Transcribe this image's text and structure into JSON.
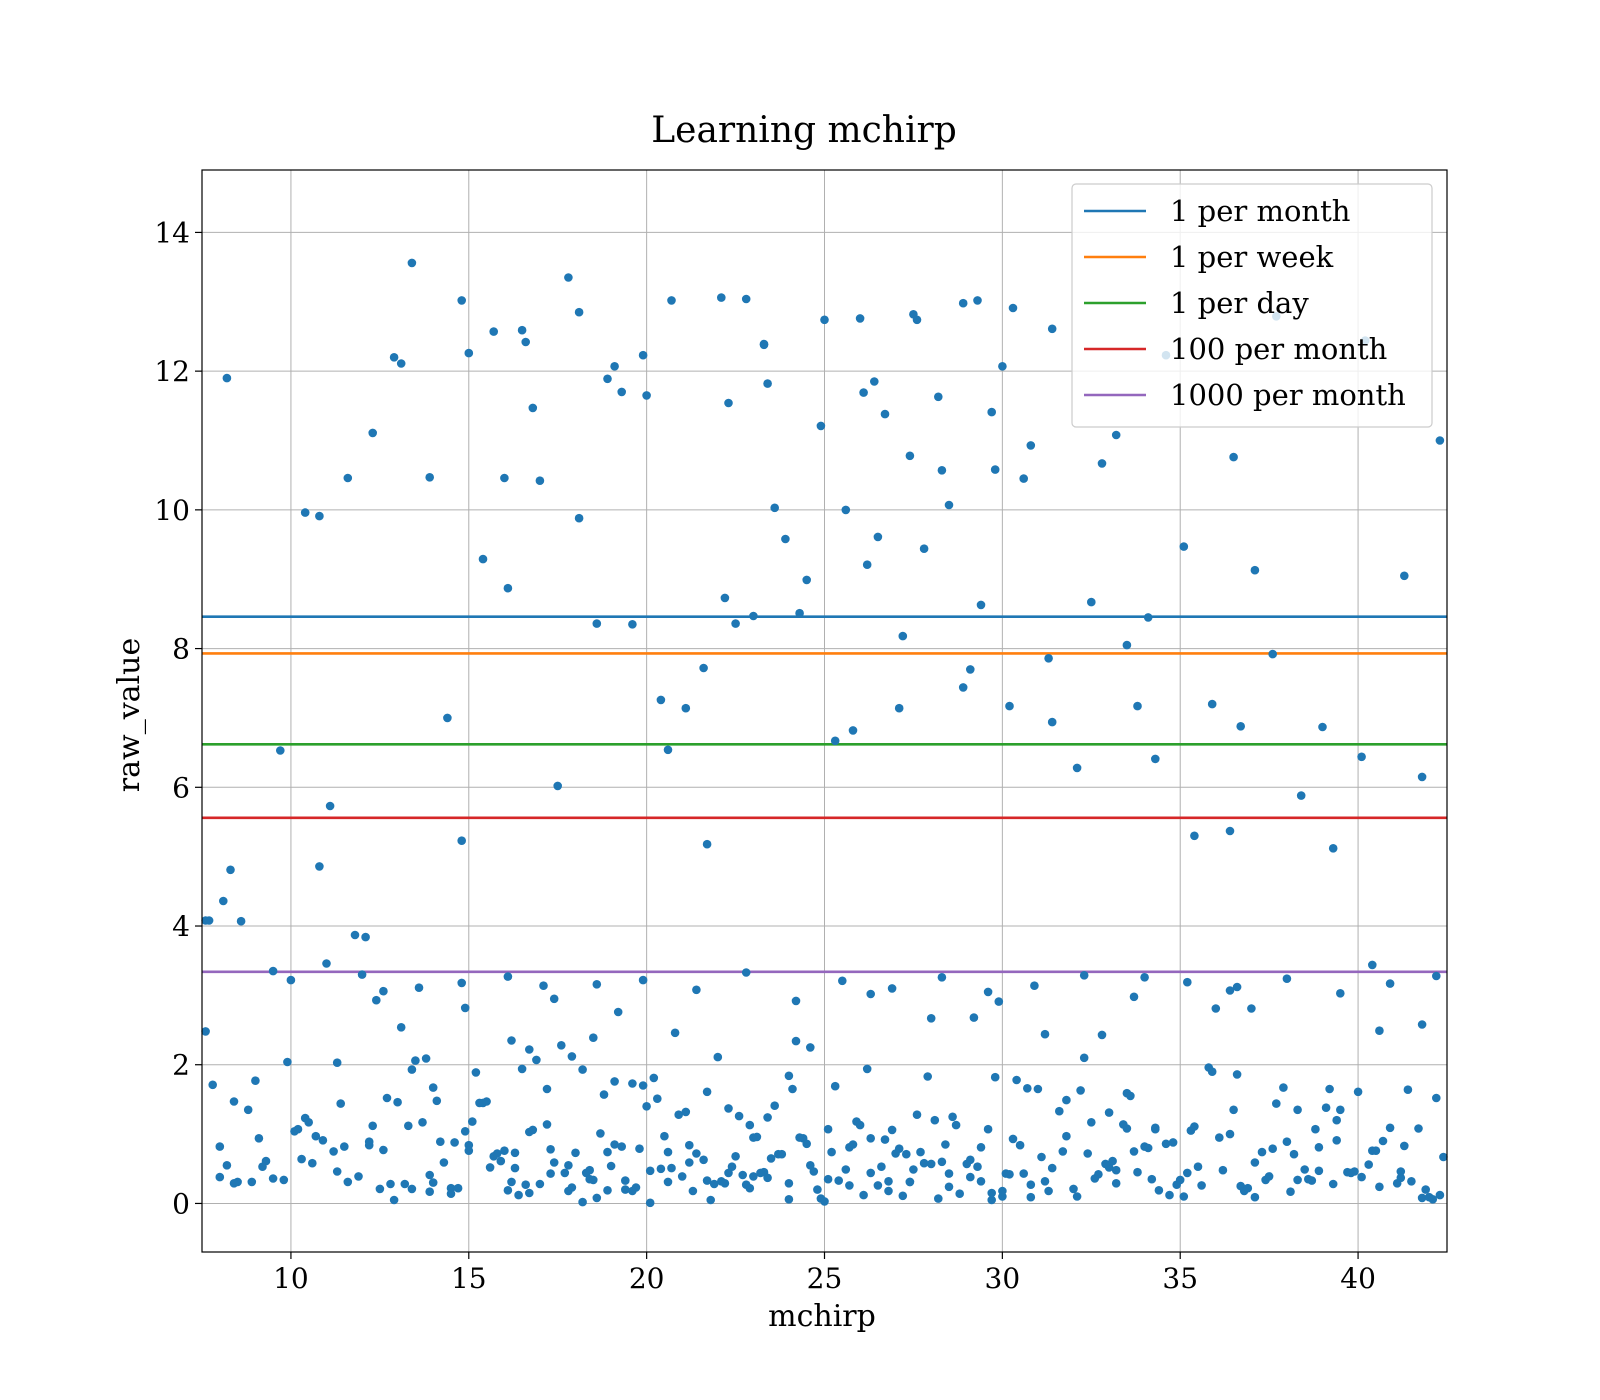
{
  "chart_data": {
    "type": "scatter",
    "title": "Learning mchirp",
    "xlabel": "mchirp",
    "ylabel": "raw_value",
    "xlim": [
      7.5,
      42.5
    ],
    "ylim": [
      -0.7,
      14.9
    ],
    "xticks": [
      10,
      15,
      20,
      25,
      30,
      35,
      40
    ],
    "yticks": [
      0,
      2,
      4,
      6,
      8,
      10,
      12,
      14
    ],
    "grid": true,
    "legend_position": "top-right",
    "colors": {
      "scatter": "#1f77b4",
      "grid": "#b0b0b0",
      "axes": "#000000"
    },
    "thresholds": [
      {
        "name": "1 per month",
        "y": 8.46,
        "color": "#1f77b4"
      },
      {
        "name": "1 per week",
        "y": 7.93,
        "color": "#ff7f0e"
      },
      {
        "name": "1 per day",
        "y": 6.62,
        "color": "#2ca02c"
      },
      {
        "name": "100 per month",
        "y": 5.56,
        "color": "#d62728"
      },
      {
        "name": "1000 per month",
        "y": 3.34,
        "color": "#9467bd"
      }
    ],
    "series": [
      {
        "type": "scatter",
        "x": [
          7.6,
          7.8,
          8.0,
          8.2,
          8.4,
          9.7,
          10.4,
          10.8,
          11.1,
          11.6,
          12.2,
          12.3,
          12.9,
          13.4,
          13.9,
          14.1,
          14.5,
          14.8,
          15.0,
          15.4,
          16.1,
          16.3,
          16.5,
          16.7,
          17.0,
          17.2,
          17.8,
          18.2,
          18.4,
          18.6,
          18.9,
          19.1,
          19.4,
          19.8,
          20.1,
          20.6,
          21.0,
          21.8,
          22.1,
          22.3,
          22.8,
          23.0,
          23.3,
          23.7,
          24.0,
          24.4,
          24.9,
          25.0,
          25.7,
          26.1,
          26.3,
          26.8,
          27.2,
          27.5,
          27.8,
          28.2,
          28.5,
          29.1,
          29.4,
          29.7,
          30.0,
          30.3,
          30.8,
          31.3,
          32.1,
          32.7,
          33.0,
          33.2,
          33.5,
          34.0,
          34.3,
          35.1,
          36.4,
          36.6,
          37.1,
          38.3,
          38.9,
          39.4,
          40.4,
          41.3,
          41.8,
          42.4,
          8.1,
          8.6,
          9.0,
          10.0,
          10.3,
          11.0,
          11.4,
          12.1,
          12.7,
          13.1,
          13.7,
          14.2,
          14.9,
          15.3,
          15.9,
          16.2,
          16.7,
          17.1,
          17.6,
          18.0,
          18.5,
          19.2,
          19.6,
          20.3,
          20.8,
          21.3,
          21.7,
          22.4,
          22.9,
          23.5,
          24.1,
          24.6,
          25.2,
          25.8,
          26.3,
          26.9,
          27.4,
          28.0,
          28.6,
          29.2,
          29.8,
          30.4,
          31.0,
          31.6,
          32.2,
          32.8,
          33.4,
          34.0,
          34.6,
          35.2,
          35.8,
          36.4,
          37.0,
          37.6,
          38.2,
          38.8,
          39.4,
          40.0,
          40.6,
          41.2,
          41.8,
          42.3,
          8.3,
          8.8,
          9.3,
          9.9,
          10.5,
          11.2,
          11.8,
          12.4,
          13.0,
          13.5,
          14.0,
          14.6,
          15.2,
          15.7,
          16.4,
          16.9,
          17.4,
          17.9,
          18.3,
          18.8,
          19.3,
          19.9,
          20.4,
          20.9,
          21.4,
          22.0,
          22.6,
          23.1,
          23.6,
          24.2,
          24.7,
          25.3,
          25.9,
          26.5,
          27.0,
          27.6,
          28.1,
          28.7,
          29.3,
          29.9,
          30.5,
          31.1,
          31.7,
          32.3,
          32.9,
          33.5,
          34.1,
          34.7,
          35.3,
          35.9,
          36.5,
          37.1,
          37.7,
          38.3,
          38.9,
          39.5,
          40.1,
          40.7,
          41.4,
          42.0,
          7.7,
          8.5,
          9.2,
          10.1,
          10.7,
          11.3,
          12.0,
          12.6,
          13.3,
          13.8,
          14.3,
          14.9,
          15.5,
          16.0,
          16.6,
          17.2,
          17.7,
          18.2,
          18.7,
          19.1,
          19.7,
          20.2,
          20.7,
          21.2,
          21.9,
          22.5,
          23.0,
          23.4,
          24.0,
          24.5,
          25.1,
          25.6,
          26.2,
          26.7,
          27.3,
          27.9,
          28.4,
          29.0,
          29.6,
          30.1,
          30.7,
          31.2,
          31.8,
          32.4,
          33.0,
          33.6,
          34.2,
          34.8,
          35.4,
          36.0,
          36.7,
          37.3,
          37.9,
          38.5,
          39.1,
          39.7,
          40.3,
          40.9,
          41.5,
          42.1,
          8.0,
          8.9,
          9.5,
          10.2,
          10.9,
          11.5,
          12.2,
          12.8,
          13.4,
          14.0,
          14.7,
          15.1,
          15.8,
          16.3,
          16.8,
          17.3,
          17.8,
          18.4,
          18.9,
          19.4,
          20.0,
          20.5,
          21.1,
          21.6,
          22.2,
          22.7,
          23.2,
          23.8,
          24.3,
          24.8,
          25.4,
          26.0,
          26.6,
          27.1,
          27.7,
          28.3,
          28.8,
          29.4,
          30.0,
          30.6,
          31.2,
          31.8,
          32.5,
          33.1,
          33.7,
          34.3,
          34.9,
          35.5,
          36.1,
          36.8,
          37.4,
          38.0,
          38.6,
          39.2,
          39.8,
          40.5,
          41.1,
          41.7,
          42.2,
          8.4,
          9.1,
          9.8,
          10.6,
          11.3,
          11.9,
          12.5,
          13.2,
          13.9,
          14.5,
          15.0,
          15.6,
          16.2,
          16.7,
          17.3,
          17.9,
          18.5,
          19.0,
          19.6,
          20.1,
          20.6,
          21.2,
          21.7,
          22.3,
          22.9,
          23.4,
          24.0,
          24.6,
          25.1,
          25.7,
          26.3,
          26.8,
          27.4,
          28.0,
          28.5,
          29.1,
          29.7,
          30.2,
          30.8,
          31.4,
          32.0,
          32.6,
          33.2,
          33.8,
          34.4,
          35.0,
          35.6,
          36.2,
          36.9,
          37.5,
          38.1,
          38.7,
          39.3,
          39.9,
          40.6,
          41.2,
          41.9,
          12.6,
          13.6,
          14.8,
          16.1,
          17.4,
          18.6,
          19.9,
          21.4,
          22.8,
          24.2,
          25.5,
          26.9,
          28.3,
          29.6,
          30.9,
          32.3,
          33.7,
          35.2,
          36.6,
          38.0,
          39.5,
          40.9,
          42.2,
          13.1,
          15.7,
          18.1,
          20.7,
          23.3,
          26.0,
          28.9,
          31.4,
          34.6,
          37.7,
          40.2
        ],
        "y": [
          2.48,
          1.71,
          0.38,
          0.55,
          1.47,
          6.53,
          1.23,
          4.86,
          5.73,
          0.31,
          0.84,
          1.12,
          0.05,
          0.21,
          0.17,
          1.48,
          0.22,
          5.23,
          0.84,
          1.45,
          0.19,
          0.73,
          1.94,
          2.22,
          0.28,
          1.14,
          0.55,
          0.02,
          0.48,
          0.08,
          0.19,
          0.85,
          0.33,
          0.79,
          0.01,
          0.74,
          0.39,
          0.05,
          0.32,
          1.37,
          0.27,
          0.95,
          0.45,
          0.71,
          0.06,
          0.94,
          0.07,
          0.03,
          0.81,
          0.12,
          0.94,
          0.32,
          0.11,
          0.49,
          0.58,
          0.07,
          0.43,
          0.63,
          0.32,
          0.05,
          0.1,
          0.93,
          0.09,
          0.18,
          0.1,
          0.42,
          0.52,
          0.48,
          1.08,
          0.82,
          1.09,
          0.1,
          1.0,
          1.86,
          0.59,
          1.35,
          0.47,
          0.91,
          0.76,
          0.83,
          0.08,
          0.67,
          4.36,
          4.07,
          1.77,
          3.22,
          0.64,
          3.46,
          1.44,
          3.84,
          1.52,
          2.54,
          1.17,
          0.89,
          2.82,
          1.45,
          0.61,
          2.35,
          1.03,
          3.14,
          2.28,
          0.73,
          2.39,
          2.76,
          1.73,
          1.51,
          2.46,
          0.18,
          1.61,
          0.53,
          1.13,
          0.65,
          1.65,
          2.25,
          0.74,
          0.85,
          3.02,
          1.06,
          0.31,
          2.67,
          1.25,
          2.68,
          1.82,
          1.78,
          1.65,
          1.33,
          1.63,
          2.43,
          1.14,
          3.26,
          0.86,
          0.44,
          1.96,
          3.07,
          2.81,
          0.79,
          0.71,
          1.07,
          1.2,
          1.61,
          2.49,
          0.46,
          2.58,
          0.12,
          4.81,
          1.35,
          0.61,
          2.04,
          1.17,
          0.75,
          3.87,
          2.93,
          1.46,
          2.06,
          1.67,
          0.88,
          1.89,
          0.68,
          0.12,
          2.07,
          0.59,
          2.12,
          0.44,
          1.57,
          0.82,
          1.7,
          0.5,
          1.28,
          0.72,
          2.11,
          1.26,
          0.96,
          1.41,
          2.34,
          0.46,
          1.69,
          1.18,
          0.26,
          0.72,
          1.28,
          1.2,
          1.13,
          0.53,
          2.91,
          0.84,
          0.67,
          0.75,
          2.1,
          0.57,
          1.59,
          0.8,
          0.12,
          1.05,
          1.9,
          1.35,
          0.09,
          1.44,
          0.34,
          0.81,
          1.35,
          0.38,
          0.9,
          1.64,
          0.09,
          4.08,
          0.31,
          0.53,
          1.04,
          0.97,
          2.03,
          3.3,
          0.77,
          1.12,
          2.09,
          0.59,
          1.04,
          1.47,
          0.76,
          0.27,
          1.65,
          0.44,
          1.93,
          1.01,
          1.76,
          0.23,
          1.81,
          0.51,
          0.84,
          0.28,
          0.68,
          0.39,
          1.24,
          1.84,
          0.86,
          1.07,
          0.49,
          1.94,
          0.92,
          0.71,
          1.83,
          0.85,
          0.57,
          1.07,
          0.43,
          1.66,
          2.44,
          0.97,
          0.72,
          1.31,
          1.55,
          0.35,
          0.88,
          1.11,
          2.81,
          0.25,
          0.74,
          1.67,
          0.49,
          1.38,
          0.45,
          0.56,
          1.09,
          0.32,
          0.06,
          0.82,
          0.31,
          0.36,
          1.07,
          0.91,
          0.82,
          0.89,
          0.28,
          1.93,
          0.3,
          0.22,
          1.18,
          0.72,
          0.51,
          1.06,
          0.78,
          0.18,
          0.35,
          0.74,
          0.2,
          1.4,
          0.97,
          1.32,
          0.63,
          0.29,
          0.41,
          0.44,
          0.71,
          0.95,
          0.2,
          0.33,
          1.13,
          0.53,
          0.79,
          0.74,
          0.6,
          0.14,
          0.81,
          0.18,
          0.43,
          0.32,
          1.49,
          1.17,
          0.61,
          0.75,
          1.07,
          0.27,
          0.53,
          0.95,
          0.18,
          0.34,
          0.89,
          0.35,
          1.65,
          0.44,
          0.76,
          0.29,
          1.08,
          1.52,
          0.29,
          0.94,
          0.34,
          0.58,
          0.46,
          0.39,
          0.21,
          0.28,
          0.41,
          0.14,
          0.76,
          0.52,
          0.31,
          0.15,
          0.43,
          0.23,
          0.34,
          0.54,
          0.18,
          0.47,
          0.31,
          0.59,
          0.33,
          0.44,
          0.22,
          0.37,
          0.29,
          0.55,
          0.35,
          0.26,
          0.44,
          0.18,
          0.31,
          0.57,
          0.24,
          0.38,
          0.15,
          0.42,
          0.27,
          0.51,
          0.21,
          0.36,
          0.29,
          0.45,
          0.19,
          0.34,
          0.26,
          0.48,
          0.22,
          0.39,
          0.17,
          0.33,
          0.28,
          0.46,
          0.24,
          0.37,
          0.2,
          3.06,
          3.11,
          3.18,
          3.27,
          2.95,
          3.16,
          3.22,
          3.08,
          3.33,
          2.92,
          3.21,
          3.1,
          3.26,
          3.05,
          3.14,
          3.29,
          2.98,
          3.19,
          3.12,
          3.24,
          3.03,
          3.17,
          3.28,
          12.11,
          12.57,
          12.85,
          13.02,
          12.39,
          12.76,
          12.98,
          12.61,
          12.23,
          12.79,
          12.44
        ],
        "notes": []
      },
      {
        "type": "scatter",
        "x": [
          7.6,
          8.2,
          9.5,
          10.4,
          10.8,
          11.6,
          12.3,
          12.9,
          13.4,
          13.9,
          14.4,
          14.8,
          15.0,
          15.4,
          16.0,
          16.1,
          16.5,
          16.6,
          16.8,
          17.0,
          17.5,
          17.8,
          18.1,
          18.6,
          18.9,
          19.1,
          19.3,
          19.6,
          19.9,
          20.0,
          20.4,
          20.6,
          21.1,
          21.6,
          21.7,
          22.1,
          22.2,
          22.3,
          22.5,
          22.8,
          23.0,
          23.3,
          23.4,
          23.6,
          23.9,
          24.3,
          24.5,
          24.9,
          25.0,
          25.3,
          25.6,
          25.8,
          26.1,
          26.2,
          26.4,
          26.5,
          26.7,
          27.1,
          27.2,
          27.4,
          27.5,
          27.6,
          27.8,
          28.2,
          28.3,
          28.5,
          28.9,
          29.1,
          29.3,
          29.4,
          29.7,
          29.8,
          30.0,
          30.2,
          30.3,
          30.6,
          30.8,
          31.3,
          31.4,
          32.1,
          32.5,
          32.8,
          33.2,
          33.5,
          33.8,
          34.1,
          34.3,
          35.1,
          35.4,
          35.9,
          36.4,
          36.5,
          36.7,
          37.1,
          37.6,
          38.4,
          39.0,
          39.3,
          40.1,
          40.4,
          41.3,
          41.8,
          42.3
        ],
        "y": [
          4.08,
          11.9,
          3.35,
          9.96,
          9.91,
          10.46,
          11.11,
          12.2,
          13.56,
          10.47,
          7.0,
          13.02,
          12.26,
          9.29,
          10.46,
          8.87,
          12.59,
          12.42,
          11.47,
          10.42,
          6.02,
          13.35,
          9.88,
          8.36,
          11.89,
          12.07,
          11.7,
          8.35,
          12.23,
          11.65,
          7.26,
          6.54,
          7.14,
          7.72,
          5.18,
          13.06,
          8.73,
          11.54,
          8.36,
          13.04,
          8.47,
          12.38,
          11.82,
          10.03,
          9.58,
          8.51,
          8.99,
          11.21,
          12.74,
          6.67,
          10.0,
          6.82,
          11.69,
          9.21,
          11.85,
          9.61,
          11.38,
          7.14,
          8.18,
          10.78,
          12.82,
          12.74,
          9.44,
          11.63,
          10.57,
          10.07,
          7.44,
          7.7,
          13.02,
          8.63,
          11.41,
          10.58,
          12.07,
          7.17,
          12.91,
          10.45,
          10.93,
          7.86,
          6.94,
          6.28,
          8.67,
          10.67,
          11.08,
          8.05,
          7.17,
          8.45,
          6.41,
          9.47,
          5.3,
          7.2,
          5.37,
          10.76,
          6.88,
          9.13,
          7.92,
          5.88,
          6.87,
          5.12,
          6.44,
          3.44,
          9.05,
          6.15,
          11.0
        ],
        "notes": []
      }
    ]
  }
}
